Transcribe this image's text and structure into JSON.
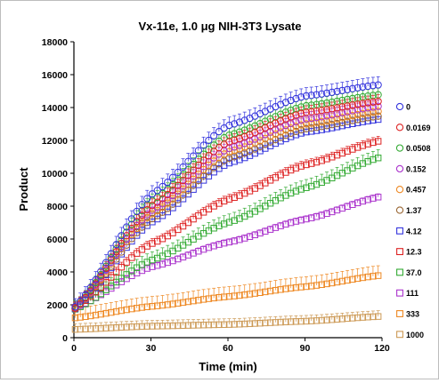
{
  "chart_data": {
    "type": "scatter",
    "title": "Vx-11e,  1.0  μg  NIH-3T3  Lysate",
    "xlabel": "Time  (min)",
    "ylabel": "Product",
    "xlim": [
      0,
      120
    ],
    "ylim": [
      0,
      18000
    ],
    "x_ticks": [
      "0",
      "30",
      "60",
      "90",
      "120"
    ],
    "y_ticks": [
      "0",
      "2000",
      "4000",
      "6000",
      "8000",
      "10000",
      "12000",
      "14000",
      "16000",
      "18000"
    ],
    "grid": false,
    "legend_position": "right",
    "marker": "open",
    "series": [
      {
        "name": "0",
        "color": "#3333dd",
        "marker": "circle",
        "x": [
          0,
          30,
          60,
          90,
          120
        ],
        "y": [
          1800,
          8700,
          12900,
          14700,
          15400
        ],
        "err": 500
      },
      {
        "name": "0.0169",
        "color": "#dd2222",
        "marker": "circle",
        "x": [
          0,
          30,
          60,
          90,
          120
        ],
        "y": [
          1700,
          8000,
          11900,
          13700,
          14400
        ],
        "err": 400
      },
      {
        "name": "0.0508",
        "color": "#33aa33",
        "marker": "circle",
        "x": [
          0,
          30,
          60,
          90,
          120
        ],
        "y": [
          1700,
          8300,
          12300,
          14100,
          14800
        ],
        "err": 400
      },
      {
        "name": "0.152",
        "color": "#aa33cc",
        "marker": "circle",
        "x": [
          0,
          30,
          60,
          90,
          120
        ],
        "y": [
          1700,
          7700,
          11500,
          13300,
          14100
        ],
        "err": 400
      },
      {
        "name": "0.457",
        "color": "#ee8822",
        "marker": "circle",
        "x": [
          0,
          30,
          60,
          90,
          120
        ],
        "y": [
          1700,
          7500,
          11300,
          13000,
          13800
        ],
        "err": 400
      },
      {
        "name": "1.37",
        "color": "#996633",
        "marker": "circle",
        "x": [
          0,
          30,
          60,
          90,
          120
        ],
        "y": [
          1700,
          7200,
          10900,
          12700,
          13500
        ],
        "err": 400
      },
      {
        "name": "4.12",
        "color": "#3333dd",
        "marker": "square",
        "x": [
          0,
          30,
          60,
          90,
          120
        ],
        "y": [
          1700,
          7000,
          10600,
          12500,
          13300
        ],
        "err": 400
      },
      {
        "name": "12.3",
        "color": "#dd2222",
        "marker": "square",
        "x": [
          0,
          30,
          60,
          90,
          120
        ],
        "y": [
          1800,
          5700,
          8400,
          10500,
          12000
        ],
        "err": 300
      },
      {
        "name": "37.0",
        "color": "#33aa33",
        "marker": "square",
        "x": [
          0,
          30,
          60,
          90,
          120
        ],
        "y": [
          1700,
          4700,
          7000,
          9100,
          11000
        ],
        "err": 500
      },
      {
        "name": "111",
        "color": "#aa33cc",
        "marker": "square",
        "x": [
          0,
          30,
          60,
          90,
          120
        ],
        "y": [
          1800,
          4300,
          5800,
          7200,
          8600
        ],
        "err": 200
      },
      {
        "name": "333",
        "color": "#ee8822",
        "marker": "square",
        "x": [
          0,
          30,
          60,
          90,
          120
        ],
        "y": [
          1200,
          1900,
          2500,
          3100,
          3800
        ],
        "err": 600
      },
      {
        "name": "1000",
        "color": "#cc9955",
        "marker": "square",
        "x": [
          0,
          30,
          60,
          90,
          120
        ],
        "y": [
          500,
          700,
          800,
          1000,
          1300
        ],
        "err": 350
      }
    ]
  }
}
